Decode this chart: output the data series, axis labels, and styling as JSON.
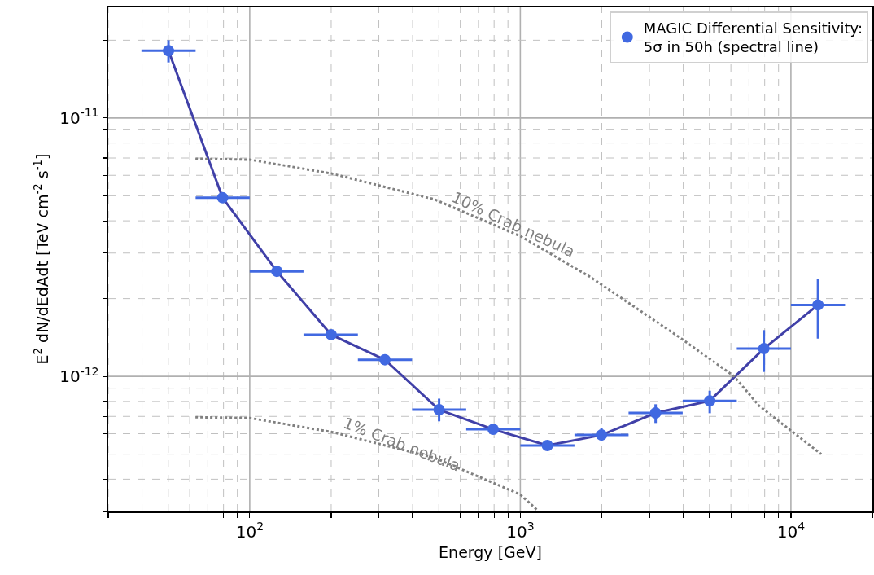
{
  "chart_data": {
    "type": "scatter",
    "xlabel": "Energy [GeV]",
    "ylabel": "E$^{2}$ dN/dEdAdt [TeV cm$^{-2}$ s$^{-1}$]",
    "x": [
      50.1,
      79.4,
      126,
      200,
      316,
      501,
      794,
      1259,
      1995,
      3162,
      5012,
      7943,
      12589
    ],
    "series": [
      {
        "name": "MAGIC Differential Sensitivity:\n5σ in 50h (spectral line)",
        "color": "#4169e1",
        "marker": "circle",
        "values": [
          1.82e-11,
          4.91e-12,
          2.55e-12,
          1.45e-12,
          1.16e-12,
          7.43e-13,
          6.24e-13,
          5.4e-13,
          5.93e-13,
          7.22e-13,
          8.04e-13,
          1.28e-12,
          1.89e-12
        ],
        "errors": [
          [
            1.64e-11,
            2e-11
          ],
          null,
          null,
          null,
          [
            1.12e-12,
            1.21e-12
          ],
          [
            6.7e-13,
            8.2e-13
          ],
          null,
          null,
          [
            5.6e-13,
            6.3e-13
          ],
          [
            6.6e-13,
            7.8e-13
          ],
          [
            7.2e-13,
            8.8e-13
          ],
          [
            1.04e-12,
            1.51e-12
          ],
          [
            1.4e-12,
            2.38e-12
          ]
        ],
        "xerrors": [
          [
            39.8,
            63.1
          ],
          [
            63.1,
            100
          ],
          [
            100,
            158
          ],
          [
            158,
            251
          ],
          [
            251,
            398
          ],
          [
            398,
            631
          ],
          [
            631,
            1000
          ],
          [
            1000,
            1585
          ],
          [
            1585,
            2512
          ],
          [
            2512,
            3981
          ],
          [
            3981,
            6310
          ],
          [
            6310,
            10000
          ],
          [
            10000,
            15849
          ]
        ]
      },
      {
        "type": "line",
        "color": "#4040a8",
        "line_style": "solid",
        "values": [
          1.82e-11,
          4.91e-12,
          2.55e-12,
          1.45e-12,
          1.16e-12,
          7.43e-13,
          6.24e-13,
          5.4e-13,
          5.93e-13,
          7.22e-13,
          8.04e-13,
          1.28e-12,
          1.89e-12
        ]
      },
      {
        "type": "line",
        "color": "#808080",
        "line_style": "dotted",
        "x": [
          63,
          100,
          200,
          482,
          1000,
          1807,
          3936,
          6170,
          7620,
          12940
        ],
        "values": [
          6.95e-12,
          6.9e-12,
          6.1e-12,
          4.84e-12,
          3.49e-12,
          2.43e-12,
          1.4e-12,
          1e-12,
          7.7e-13,
          5e-13
        ]
      },
      {
        "type": "line",
        "color": "#808080",
        "line_style": "dotted",
        "x": [
          63,
          100,
          200,
          482,
          1000,
          1150
        ],
        "values": [
          6.95e-13,
          6.9e-13,
          6.1e-13,
          4.84e-13,
          3.49e-13,
          3.05e-13
        ]
      }
    ],
    "annotations": [
      "10% Crab nebula",
      "1% Crab nebula"
    ],
    "log": "xy",
    "xlim": [
      30,
      20000
    ],
    "ylim": [
      3e-13,
      2.7e-11
    ],
    "xticks": [
      {
        "value": 30,
        "label": null
      },
      {
        "value": 40,
        "label": null
      },
      {
        "value": 50,
        "label": null
      },
      {
        "value": 60,
        "label": null
      },
      {
        "value": 70,
        "label": null
      },
      {
        "value": 80,
        "label": null
      },
      {
        "value": 90,
        "label": null
      },
      {
        "value": 100,
        "label": "10$^{2}$"
      },
      {
        "value": 200,
        "label": null
      },
      {
        "value": 300,
        "label": null
      },
      {
        "value": 400,
        "label": null
      },
      {
        "value": 500,
        "label": null
      },
      {
        "value": 600,
        "label": null
      },
      {
        "value": 700,
        "label": null
      },
      {
        "value": 800,
        "label": null
      },
      {
        "value": 900,
        "label": null
      },
      {
        "value": 1000,
        "label": "10$^{3}$"
      },
      {
        "value": 2000,
        "label": null
      },
      {
        "value": 3000,
        "label": null
      },
      {
        "value": 4000,
        "label": null
      },
      {
        "value": 5000,
        "label": null
      },
      {
        "value": 6000,
        "label": null
      },
      {
        "value": 7000,
        "label": null
      },
      {
        "value": 8000,
        "label": null
      },
      {
        "value": 9000,
        "label": null
      },
      {
        "value": 10000,
        "label": "10$^{4}$"
      },
      {
        "value": 20000,
        "label": null
      }
    ],
    "yticks": [
      {
        "value": 3e-13,
        "label": null
      },
      {
        "value": 4e-13,
        "label": null
      },
      {
        "value": 5e-13,
        "label": null
      },
      {
        "value": 6e-13,
        "label": null
      },
      {
        "value": 7e-13,
        "label": null
      },
      {
        "value": 8e-13,
        "label": null
      },
      {
        "value": 9e-13,
        "label": null
      },
      {
        "value": 1e-12,
        "label": "10$^{-12}$"
      },
      {
        "value": 2e-12,
        "label": null
      },
      {
        "value": 3e-12,
        "label": null
      },
      {
        "value": 4e-12,
        "label": null
      },
      {
        "value": 5e-12,
        "label": null
      },
      {
        "value": 6e-12,
        "label": null
      },
      {
        "value": 7e-12,
        "label": null
      },
      {
        "value": 8e-12,
        "label": null
      },
      {
        "value": 9e-12,
        "label": null
      },
      {
        "value": 1e-11,
        "label": "10$^{-11}$"
      },
      {
        "value": 2e-11,
        "label": null
      }
    ],
    "grid": true,
    "legend": "top right"
  }
}
